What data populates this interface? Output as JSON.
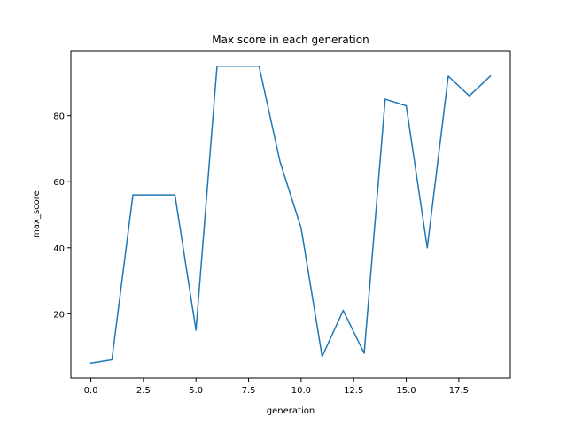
{
  "chart_data": {
    "type": "line",
    "title": "Max score in each generation",
    "xlabel": "generation",
    "ylabel": "max_score",
    "xlim": [
      -0.95,
      19.95
    ],
    "ylim": [
      0.5,
      99.5
    ],
    "xticks": [
      0.0,
      2.5,
      5.0,
      7.5,
      10.0,
      12.5,
      15.0,
      17.5
    ],
    "xtick_labels": [
      "0.0",
      "2.5",
      "5.0",
      "7.5",
      "10.0",
      "12.5",
      "15.0",
      "17.5"
    ],
    "yticks": [
      20,
      40,
      60,
      80
    ],
    "ytick_labels": [
      "20",
      "40",
      "60",
      "80"
    ],
    "grid": false,
    "legend": "none",
    "series": [
      {
        "color": "#1f77b4",
        "x": [
          0,
          1,
          2,
          3,
          4,
          5,
          6,
          7,
          8,
          9,
          10,
          11,
          12,
          13,
          14,
          15,
          16,
          17,
          18,
          19
        ],
        "y": [
          5,
          6,
          56,
          56,
          56,
          15,
          95,
          95,
          95,
          66,
          46,
          7,
          21,
          8,
          85,
          83,
          40,
          92,
          86,
          92
        ]
      }
    ]
  }
}
